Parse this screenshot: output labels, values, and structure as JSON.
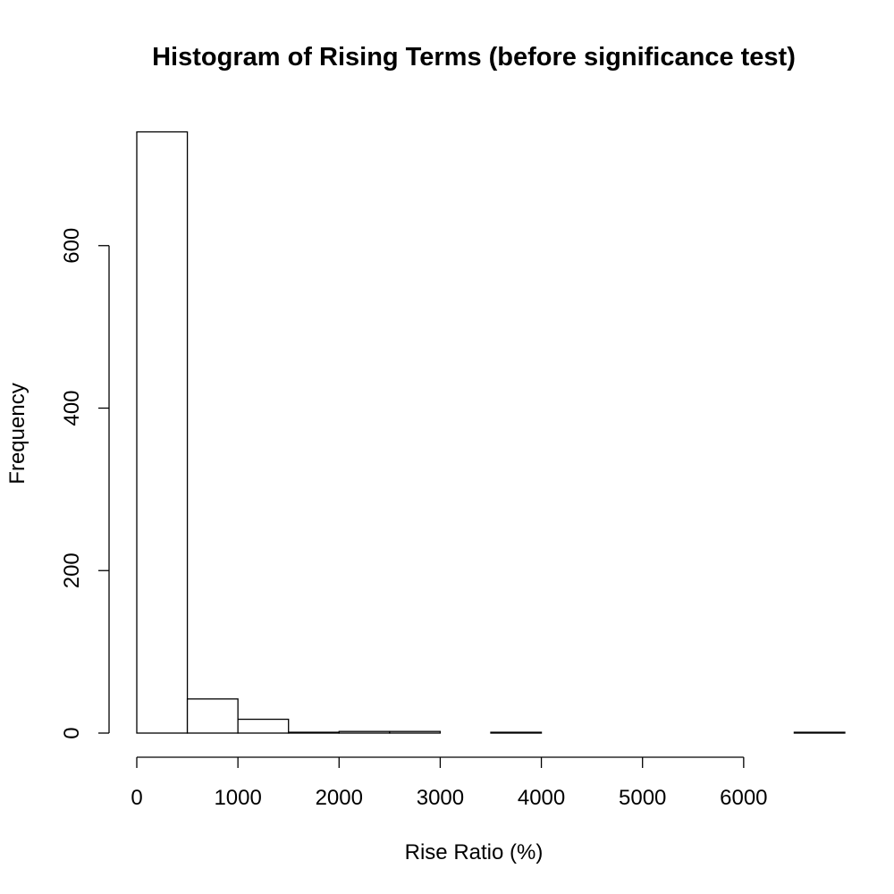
{
  "chart_data": {
    "type": "bar",
    "title": "Histogram of Rising Terms (before significance test)",
    "xlabel": "Rise Ratio (%)",
    "ylabel": "Frequency",
    "bin_width": 500,
    "bins": [
      {
        "start": 0,
        "end": 500,
        "count": 740
      },
      {
        "start": 500,
        "end": 1000,
        "count": 42
      },
      {
        "start": 1000,
        "end": 1500,
        "count": 17
      },
      {
        "start": 1500,
        "end": 2000,
        "count": 1
      },
      {
        "start": 2000,
        "end": 2500,
        "count": 2
      },
      {
        "start": 2500,
        "end": 3000,
        "count": 2
      },
      {
        "start": 3000,
        "end": 3500,
        "count": 0
      },
      {
        "start": 3500,
        "end": 4000,
        "count": 1
      },
      {
        "start": 4000,
        "end": 4500,
        "count": 0
      },
      {
        "start": 4500,
        "end": 5000,
        "count": 0
      },
      {
        "start": 5000,
        "end": 5500,
        "count": 0
      },
      {
        "start": 5500,
        "end": 6000,
        "count": 0
      },
      {
        "start": 6000,
        "end": 6500,
        "count": 0
      },
      {
        "start": 6500,
        "end": 7000,
        "count": 1
      }
    ],
    "xlim": [
      0,
      7000
    ],
    "ylim": [
      0,
      740
    ],
    "x_ticks": [
      0,
      1000,
      2000,
      3000,
      4000,
      5000,
      6000
    ],
    "y_ticks": [
      0,
      200,
      400,
      600
    ],
    "grid": false
  }
}
